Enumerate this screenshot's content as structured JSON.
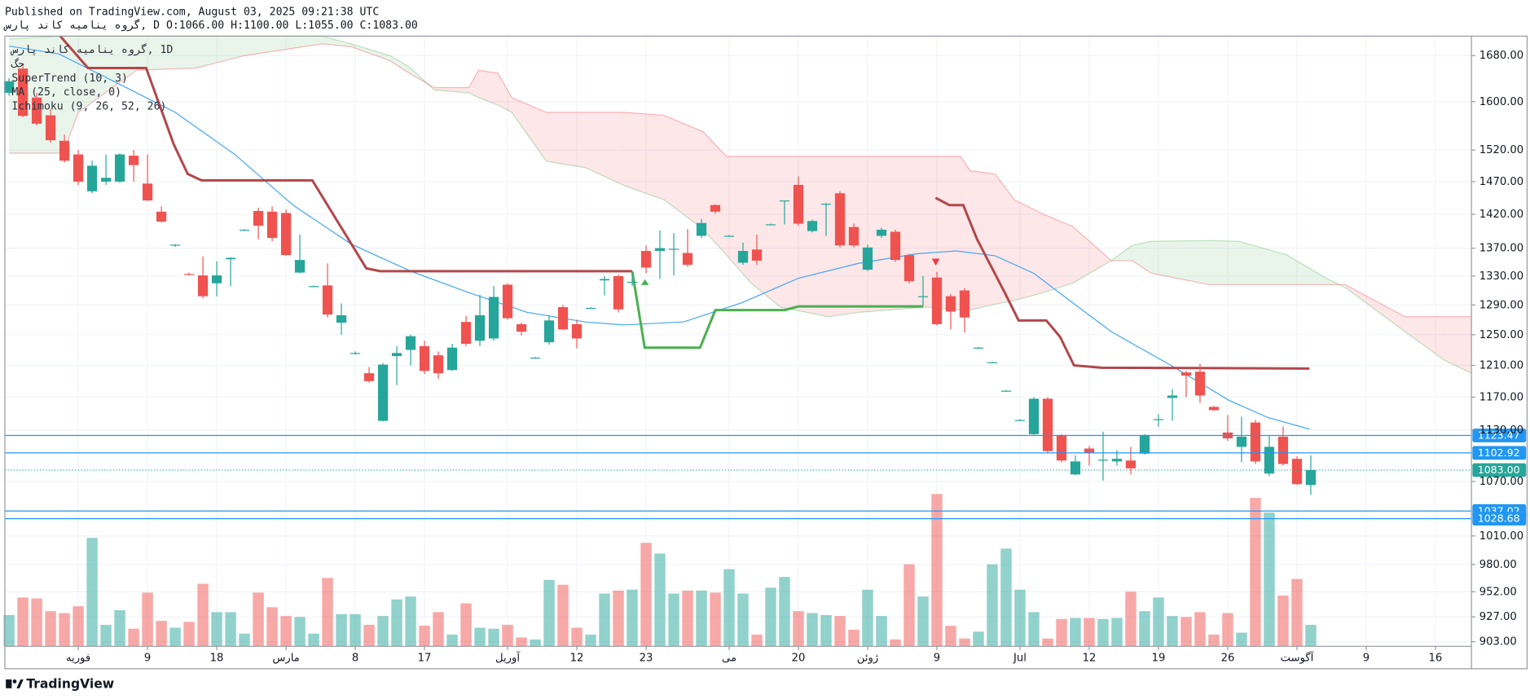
{
  "chart_data": {
    "type": "candlestick",
    "title": "Published on TradingView.com, August 03, 2025 09:21:38 UTC",
    "subtitle": "سراپ دناک هیمانی هورگ, D O:1066.00 H:1100.00 L:1055.00 C:1083.00",
    "legend": [
      "سراپ دناک هیمانی هورگ, 1D",
      "گح",
      "SuperTrend (10, 3)",
      "MA (25, close, 0)",
      "Ichimoku (9, 26, 52, 26)"
    ],
    "brand": "TradingView",
    "up_color": "#26a69a",
    "down_color": "#ef5350",
    "log_scale": true,
    "grid": true,
    "xlim": [
      -0.3,
      105.6
    ],
    "xticks": [
      {
        "value": 5,
        "label": "فوریه"
      },
      {
        "value": 10,
        "label": "9"
      },
      {
        "value": 15,
        "label": "18"
      },
      {
        "value": 20,
        "label": "مارس"
      },
      {
        "value": 25,
        "label": "8"
      },
      {
        "value": 30,
        "label": "17"
      },
      {
        "value": 36,
        "label": "آوریل"
      },
      {
        "value": 41,
        "label": "12"
      },
      {
        "value": 46,
        "label": "23"
      },
      {
        "value": 52,
        "label": "می"
      },
      {
        "value": 57,
        "label": "20"
      },
      {
        "value": 62,
        "label": "ژوئن"
      },
      {
        "value": 67,
        "label": "9"
      },
      {
        "value": 73,
        "label": "Jul"
      },
      {
        "value": 78,
        "label": "12"
      },
      {
        "value": 83,
        "label": "19"
      },
      {
        "value": 88,
        "label": "26"
      },
      {
        "value": 93,
        "label": "آگوست"
      },
      {
        "value": 98,
        "label": "9"
      },
      {
        "value": 103,
        "label": "16"
      }
    ],
    "ylim": [
      898.6,
      1715
    ],
    "yticks": [
      {
        "value": 1680,
        "label": "1680.00"
      },
      {
        "value": 1600,
        "label": "1600.00"
      },
      {
        "value": 1520,
        "label": "1520.00"
      },
      {
        "value": 1470,
        "label": "1470.00"
      },
      {
        "value": 1420,
        "label": "1420.00"
      },
      {
        "value": 1370,
        "label": "1370.00"
      },
      {
        "value": 1330,
        "label": "1330.00"
      },
      {
        "value": 1290,
        "label": "1290.00"
      },
      {
        "value": 1250,
        "label": "1250.00"
      },
      {
        "value": 1210,
        "label": "1210.00"
      },
      {
        "value": 1170,
        "label": "1170.00"
      },
      {
        "value": 1130,
        "label": "1130.00"
      },
      {
        "value": 1070,
        "label": "1070.00"
      },
      {
        "value": 1010,
        "label": "1010.00"
      },
      {
        "value": 980,
        "label": "980.00"
      },
      {
        "value": 952,
        "label": "952.00"
      },
      {
        "value": 927,
        "label": "927.00"
      },
      {
        "value": 903,
        "label": "903.00"
      }
    ],
    "x": [
      0,
      1,
      2,
      3,
      4,
      5,
      6,
      7,
      8,
      9,
      10,
      11,
      12,
      13,
      14,
      15,
      16,
      17,
      18,
      19,
      20,
      21,
      22,
      23,
      24,
      25,
      26,
      27,
      28,
      29,
      30,
      31,
      32,
      33,
      34,
      35,
      36,
      37,
      38,
      39,
      40,
      41,
      42,
      43,
      44,
      45,
      46,
      47,
      48,
      49,
      50,
      51,
      52,
      53,
      54,
      55,
      56,
      57,
      58,
      59,
      60,
      61,
      62,
      63,
      64,
      65,
      66,
      67,
      68,
      69,
      70,
      71,
      72,
      73,
      74,
      75,
      76,
      77,
      78,
      79,
      80,
      81,
      82,
      83,
      84,
      85,
      86,
      87,
      88,
      89,
      90,
      91,
      92,
      93,
      94
    ],
    "open": [
      1615,
      1657,
      1607,
      1577,
      1535,
      1513,
      1455,
      1470,
      1470,
      1511,
      1467,
      1424,
      1374,
      1333,
      1331,
      1320,
      1354,
      1397,
      1425,
      1424,
      1422,
      1335,
      1316,
      1317,
      1266,
      1226,
      1200,
      1141,
      1222,
      1230,
      1235,
      1223,
      1204,
      1267,
      1242,
      1245,
      1318,
      1264,
      1220,
      1240,
      1287,
      1264,
      1286,
      1324,
      1330,
      1322,
      1366,
      1366,
      1368,
      1363,
      1388,
      1434,
      1388,
      1349,
      1368,
      1405,
      1440,
      1465,
      1395,
      1435,
      1452,
      1401,
      1339,
      1388,
      1394,
      1360,
      1302,
      1328,
      1302,
      1310,
      1233,
      1214,
      1178,
      1142,
      1125,
      1168,
      1124,
      1078,
      1108,
      1094,
      1093,
      1094,
      1102,
      1142,
      1169,
      1201,
      1202,
      1158,
      1127,
      1110,
      1139,
      1079,
      1122,
      1096,
      1066
    ],
    "high": [
      1640,
      1662,
      1615,
      1587,
      1545,
      1520,
      1503,
      1513,
      1515,
      1520,
      1513,
      1432,
      1376,
      1335,
      1358,
      1351,
      1357,
      1398,
      1430,
      1432,
      1427,
      1390,
      1317,
      1348,
      1292,
      1228,
      1208,
      1213,
      1235,
      1250,
      1242,
      1228,
      1238,
      1275,
      1304,
      1316,
      1320,
      1266,
      1221,
      1276,
      1290,
      1270,
      1287,
      1330,
      1332,
      1334,
      1374,
      1396,
      1392,
      1398,
      1413,
      1435,
      1389,
      1378,
      1390,
      1406,
      1441,
      1478,
      1412,
      1437,
      1455,
      1406,
      1375,
      1400,
      1397,
      1362,
      1330,
      1336,
      1305,
      1313,
      1234,
      1215,
      1179,
      1143,
      1170,
      1170,
      1125,
      1100,
      1111,
      1128,
      1106,
      1110,
      1125,
      1149,
      1180,
      1203,
      1212,
      1159,
      1148,
      1146,
      1142,
      1124,
      1134,
      1099,
      1100
    ],
    "low": [
      1610,
      1574,
      1560,
      1532,
      1500,
      1465,
      1452,
      1465,
      1468,
      1470,
      1440,
      1408,
      1372,
      1331,
      1299,
      1302,
      1316,
      1396,
      1383,
      1380,
      1359,
      1334,
      1315,
      1273,
      1250,
      1224,
      1188,
      1140,
      1185,
      1210,
      1199,
      1193,
      1203,
      1235,
      1235,
      1242,
      1270,
      1249,
      1219,
      1237,
      1256,
      1232,
      1285,
      1303,
      1280,
      1316,
      1334,
      1326,
      1331,
      1343,
      1385,
      1421,
      1387,
      1346,
      1346,
      1404,
      1405,
      1403,
      1393,
      1388,
      1371,
      1371,
      1337,
      1385,
      1350,
      1320,
      1288,
      1262,
      1257,
      1253,
      1232,
      1213,
      1177,
      1141,
      1124,
      1103,
      1092,
      1077,
      1088,
      1071,
      1088,
      1078,
      1101,
      1134,
      1141,
      1170,
      1163,
      1153,
      1117,
      1092,
      1090,
      1076,
      1088,
      1066,
      1055
    ],
    "close": [
      1635,
      1576,
      1563,
      1536,
      1503,
      1470,
      1495,
      1476,
      1513,
      1496,
      1441,
      1409,
      1375,
      1332,
      1302,
      1331,
      1356,
      1397,
      1403,
      1385,
      1360,
      1353,
      1316,
      1277,
      1276,
      1226,
      1190,
      1211,
      1226,
      1248,
      1203,
      1200,
      1233,
      1238,
      1276,
      1301,
      1272,
      1254,
      1220,
      1269,
      1257,
      1245,
      1286,
      1326,
      1284,
      1322,
      1342,
      1370,
      1369,
      1346,
      1407,
      1424,
      1388,
      1366,
      1352,
      1405,
      1441,
      1406,
      1410,
      1436,
      1374,
      1374,
      1371,
      1397,
      1353,
      1323,
      1302,
      1264,
      1281,
      1273,
      1233,
      1214,
      1178,
      1142,
      1168,
      1105,
      1094,
      1093,
      1103,
      1095,
      1096,
      1085,
      1124,
      1143,
      1172,
      1197,
      1172,
      1154,
      1120,
      1122,
      1093,
      1110,
      1090,
      1067,
      1083
    ],
    "volume": {
      "lim": [
        0,
        625
      ],
      "values": [
        32,
        50,
        49,
        36,
        34,
        41,
        111,
        22,
        37,
        18,
        55,
        26,
        19,
        25,
        64,
        35,
        35,
        13,
        55,
        40,
        31,
        30,
        13,
        70,
        33,
        33,
        22,
        31,
        48,
        51,
        21,
        35,
        12,
        44,
        19,
        18,
        22,
        9,
        7,
        68,
        63,
        19,
        12,
        54,
        57,
        58,
        106,
        95,
        54,
        57,
        57,
        55,
        79,
        54,
        12,
        60,
        71,
        36,
        34,
        32,
        31,
        17,
        58,
        31,
        7,
        84,
        51,
        156,
        21,
        8,
        15,
        84,
        100,
        58,
        35,
        8,
        28,
        29,
        29,
        28,
        29,
        56,
        36,
        50,
        31,
        30,
        35,
        12,
        34,
        14,
        152,
        137,
        52,
        69,
        22
      ]
    },
    "ma": {
      "color": "#42a5f5",
      "x": [
        0,
        3.6,
        7.8,
        12,
        16.3,
        20.5,
        24.7,
        29,
        33.2,
        37.4,
        41.6,
        44.4,
        48.7,
        52.9,
        57,
        61.3,
        65.6,
        68.4,
        71.2,
        74,
        76.8,
        79.6,
        83.9,
        88.1,
        90.9,
        93.9
      ],
      "values": [
        1697,
        1683,
        1632,
        1582,
        1513,
        1434,
        1376,
        1337,
        1307,
        1280,
        1267,
        1263,
        1267,
        1293,
        1327,
        1348,
        1362,
        1366,
        1359,
        1334,
        1293,
        1254,
        1210,
        1166,
        1145,
        1131
      ]
    },
    "supertrend": [
      {
        "color": "#b2474b",
        "x": [
          3.7,
          5.7,
          9.9,
          11.9,
          12.9,
          13.9,
          21.9,
          25.8,
          26.8,
          45.0
        ],
        "values": [
          1715,
          1658,
          1658,
          1529,
          1482,
          1472,
          1472,
          1341,
          1337,
          1337
        ]
      },
      {
        "color": "#4caf50",
        "x": [
          45.0,
          45.9,
          49.9,
          51.0,
          56.0,
          57.0,
          66.0
        ],
        "values": [
          1337,
          1233,
          1233,
          1283,
          1283,
          1288,
          1288
        ]
      },
      {
        "color": "#b2474b",
        "x": [
          66.9,
          67.9,
          68.9,
          69.9,
          71.9,
          72.9,
          74.9,
          75.9,
          76.9,
          78.9,
          93.9
        ],
        "values": [
          1445,
          1434,
          1434,
          1383,
          1307,
          1269,
          1269,
          1247,
          1210,
          1207,
          1206
        ]
      }
    ],
    "ichimoku": {
      "up_color": "#4caf50",
      "down_color": "#f23645",
      "x": [
        0,
        3.9,
        5,
        9.2,
        13.5,
        17,
        22.6,
        24.7,
        27.5,
        28.9,
        30.7,
        33.2,
        33.9,
        35.3,
        36.3,
        38.8,
        41.6,
        44.4,
        47.3,
        50.1,
        51.8,
        53.6,
        55.7,
        59.2,
        61.3,
        66.3,
        68.7,
        69.4,
        71.2,
        72.6,
        74.7,
        76.8,
        79.6,
        81.1,
        82.5,
        86.7,
        88.8,
        92.3,
        95.1,
        96.5,
        100.8,
        103.7,
        105.6
      ],
      "span_a": [
        1710,
        1715,
        1715,
        1715,
        1715,
        1715,
        1715,
        1701,
        1680,
        1660,
        1620,
        1615,
        1607,
        1594,
        1582,
        1502,
        1492,
        1464,
        1442,
        1398,
        1360,
        1320,
        1287,
        1274,
        1280,
        1287,
        1283,
        1283,
        1291,
        1296,
        1307,
        1320,
        1352,
        1374,
        1380,
        1381,
        1380,
        1360,
        1327,
        1314,
        1254,
        1216,
        1200
      ],
      "span_b": [
        1515,
        1515,
        1582,
        1654,
        1658,
        1680,
        1701,
        1696,
        1671,
        1649,
        1624,
        1624,
        1654,
        1649,
        1607,
        1582,
        1582,
        1582,
        1577,
        1550,
        1510,
        1510,
        1510,
        1510,
        1510,
        1510,
        1510,
        1487,
        1482,
        1442,
        1420,
        1402,
        1352,
        1352,
        1334,
        1318,
        1318,
        1318,
        1318,
        1318,
        1274,
        1274,
        1274
      ]
    },
    "price_lines": [
      {
        "value": 1123.47,
        "color": "#2196f3"
      },
      {
        "value": 1102.92,
        "color": "#2196f3"
      },
      {
        "value": 1037.02,
        "color": "#2196f3"
      },
      {
        "value": 1028.68,
        "color": "#2196f3"
      }
    ],
    "last_price": {
      "value": 1083,
      "label": "1083.00",
      "color": "#26a69a"
    }
  }
}
